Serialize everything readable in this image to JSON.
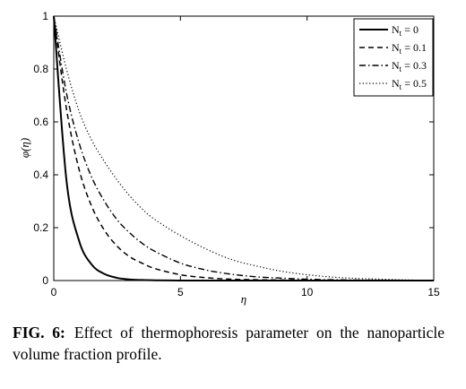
{
  "chart_data": {
    "type": "line",
    "xlabel": "η",
    "ylabel": "φ(η)",
    "xlim": [
      0,
      15
    ],
    "ylim": [
      0,
      1
    ],
    "xticks": [
      "0",
      "5",
      "10",
      "15"
    ],
    "yticks": [
      "0",
      "0.2",
      "0.4",
      "0.6",
      "0.8",
      "1"
    ],
    "grid": false,
    "legend_position": "top-right",
    "x": [
      0,
      0.5,
      1,
      1.5,
      2,
      2.5,
      3,
      3.5,
      4,
      5,
      6,
      7,
      8,
      9,
      10,
      11,
      12,
      13,
      14,
      15
    ],
    "series": [
      {
        "name": "N_t = 0",
        "style": "solid",
        "values": [
          1.0,
          0.38,
          0.15,
          0.06,
          0.025,
          0.01,
          0.004,
          0.002,
          0.001,
          0.0,
          0.0,
          0.0,
          0.0,
          0.0,
          0.0,
          0.0,
          0.0,
          0.0,
          0.0,
          0.0
        ]
      },
      {
        "name": "N_t = 0.1",
        "style": "dashed",
        "values": [
          1.0,
          0.65,
          0.42,
          0.28,
          0.19,
          0.13,
          0.09,
          0.065,
          0.045,
          0.022,
          0.011,
          0.005,
          0.003,
          0.002,
          0.001,
          0.0,
          0.0,
          0.0,
          0.0,
          0.0
        ]
      },
      {
        "name": "N_t = 0.3",
        "style": "dashdot",
        "values": [
          1.0,
          0.71,
          0.52,
          0.39,
          0.3,
          0.23,
          0.18,
          0.14,
          0.11,
          0.066,
          0.04,
          0.024,
          0.014,
          0.009,
          0.005,
          0.003,
          0.002,
          0.001,
          0.0,
          0.0
        ]
      },
      {
        "name": "N_t = 0.5",
        "style": "dotted",
        "values": [
          1.0,
          0.8,
          0.64,
          0.53,
          0.45,
          0.38,
          0.32,
          0.27,
          0.23,
          0.17,
          0.12,
          0.08,
          0.055,
          0.035,
          0.022,
          0.013,
          0.008,
          0.005,
          0.002,
          0.0
        ]
      }
    ]
  },
  "caption": {
    "label": "FIG. 6:",
    "text": "Effect of thermophoresis parameter on the nanoparticle volume fraction profile."
  }
}
